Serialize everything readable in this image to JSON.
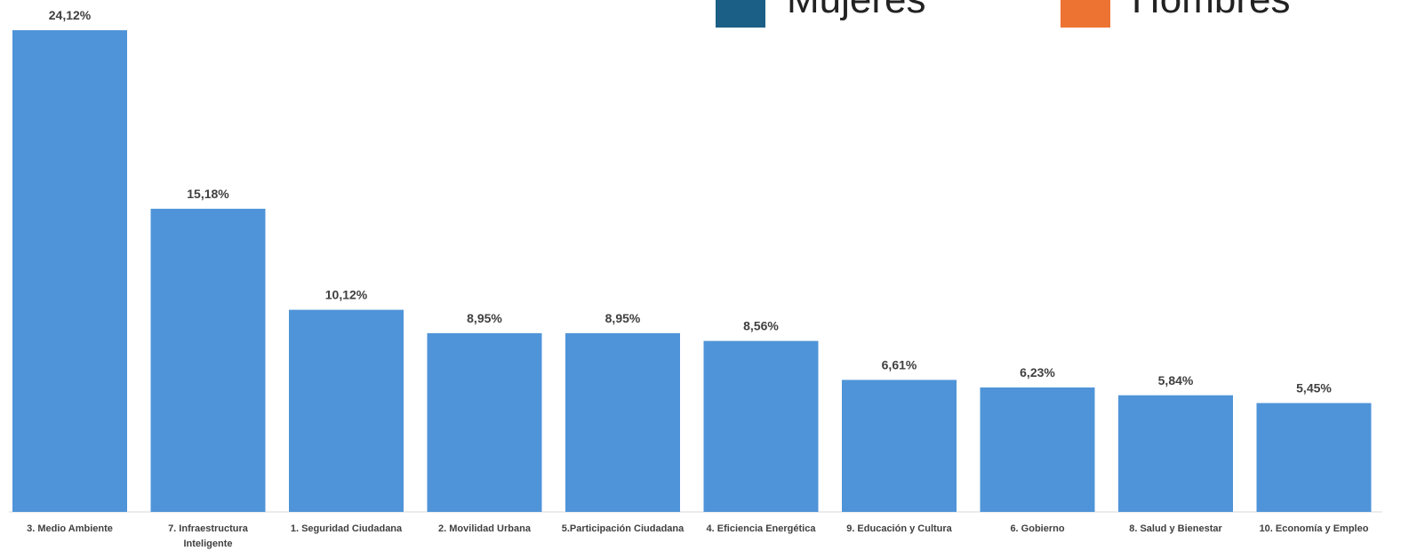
{
  "chart_data": {
    "type": "bar",
    "legend": [
      {
        "name": "Mujeres",
        "color": "#1b5f87"
      },
      {
        "name": "Hombres",
        "color": "#ec7332"
      }
    ],
    "categories": [
      "3. Medio Ambiente",
      "7. Infraestructura Inteligente",
      "1. Seguridad Ciudadana",
      "2. Movilidad Urbana",
      "5.Participación Ciudadana",
      "4. Eficiencia Energética",
      "9. Educación y Cultura",
      "6. Gobierno",
      "8. Salud y Bienestar",
      "10. Economía y Empleo"
    ],
    "values": [
      24.12,
      15.18,
      10.12,
      8.95,
      8.95,
      8.56,
      6.61,
      6.23,
      5.84,
      5.45
    ],
    "value_labels": [
      "24,12%",
      "15,18%",
      "10,12%",
      "8,95%",
      "8,95%",
      "8,56%",
      "6,61%",
      "6,23%",
      "5,84%",
      "5,45%"
    ],
    "color": "#4f94d8"
  }
}
